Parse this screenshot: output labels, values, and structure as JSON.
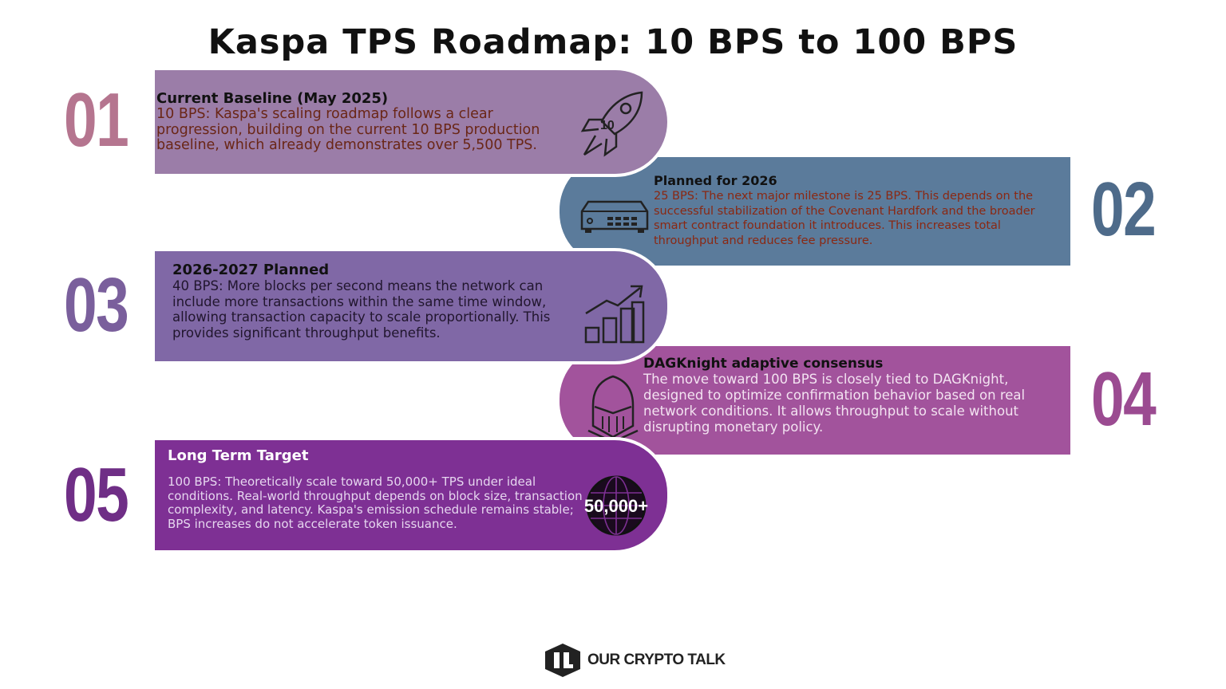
{
  "title": "Kaspa TPS Roadmap: 10 BPS to 100 BPS",
  "steps": [
    {
      "number": "01",
      "heading": "Current Baseline (May 2025)",
      "description": "10 BPS: Kaspa's scaling roadmap follows a clear progression, building on the current 10 BPS production baseline, which already demonstrates over 5,500 TPS.",
      "icon": "rocket-icon",
      "icon_label": "10",
      "color": "#9b7da8"
    },
    {
      "number": "02",
      "heading": "Planned for 2026",
      "description": "25 BPS: The next major milestone is 25 BPS. This depends on the successful stabilization of the Covenant Hardfork and the broader smart contract foundation it introduces. This increases total throughput and reduces fee pressure.",
      "icon": "server-icon",
      "color": "#5b7b9b"
    },
    {
      "number": "03",
      "heading": "2026-2027 Planned",
      "description": "40 BPS: More blocks per second means the network can include more transactions within the same time window, allowing transaction capacity to scale proportionally. This provides significant throughput benefits.",
      "icon": "growth-chart-icon",
      "color": "#8068a6"
    },
    {
      "number": "04",
      "heading": "DAGKnight adaptive consensus",
      "description": "The move toward 100 BPS is closely tied to DAGKnight, designed to optimize confirmation behavior based on real network conditions. It allows throughput to scale without disrupting monetary policy.",
      "icon": "knight-helmet-icon",
      "color": "#a2539c"
    },
    {
      "number": "05",
      "heading": "Long Term Target",
      "description": "100 BPS: Theoretically scale toward 50,000+ TPS under ideal conditions. Real-world throughput depends on block size, transaction complexity, and latency. Kaspa's emission schedule remains stable; BPS increases do not accelerate token issuance.",
      "icon": "globe-icon",
      "icon_label": "50,000+",
      "color": "#7e3094"
    }
  ],
  "brand": {
    "name": "OUR CRYPTO TALK"
  }
}
